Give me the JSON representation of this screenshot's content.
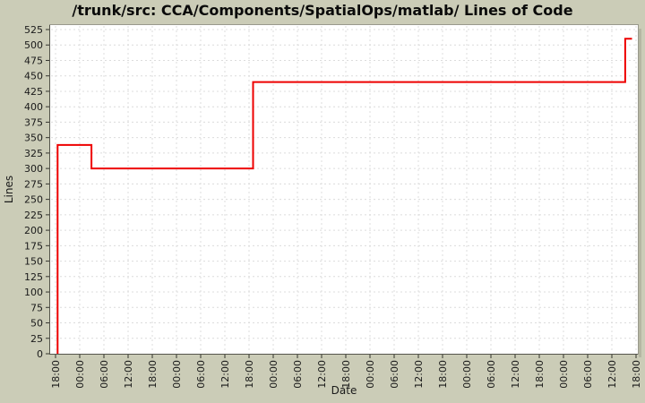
{
  "window": {
    "title": "/trunk/src: CCA/Components/SpatialOps/matlab/ Lines of Code"
  },
  "colors": {
    "background": "#cbccb7",
    "plot_background": "#ffffff",
    "grid": "#dcdcdc",
    "border": "#99998c",
    "axis": "#55554c",
    "tick": "#33332e",
    "line": "#ee0000",
    "text": "#1a1a1a",
    "shadow": "#b5b6a2"
  },
  "chart_data": {
    "type": "line",
    "subtype": "step",
    "title": "/trunk/src: CCA/Components/SpatialOps/matlab/ Lines of Code",
    "xlabel": "Date",
    "ylabel": "Lines",
    "grid": true,
    "legend_position": "none",
    "x_axis": {
      "unit": "hours-since-first-tick",
      "range": [
        0,
        144
      ],
      "tick_interval_hours": 6,
      "tick_labels": [
        "18:00",
        "00:00",
        "06:00",
        "12:00",
        "18:00",
        "00:00",
        "06:00",
        "12:00",
        "18:00",
        "00:00",
        "06:00",
        "12:00",
        "18:00",
        "00:00",
        "06:00",
        "12:00",
        "18:00",
        "00:00",
        "06:00",
        "12:00",
        "18:00",
        "00:00",
        "06:00",
        "12:00",
        "18:00"
      ]
    },
    "y_axis": {
      "range": [
        0,
        525
      ],
      "tick_interval": 25,
      "tick_labels": [
        "0",
        "25",
        "50",
        "75",
        "100",
        "125",
        "150",
        "175",
        "200",
        "225",
        "250",
        "275",
        "300",
        "325",
        "350",
        "375",
        "400",
        "425",
        "450",
        "475",
        "500",
        "525"
      ]
    },
    "series": [
      {
        "name": "Lines of Code",
        "color": "#ee0000",
        "points": [
          {
            "t": 0.5,
            "value": 0
          },
          {
            "t": 0.5,
            "value": 338
          },
          {
            "t": 8.9,
            "value": 338
          },
          {
            "t": 8.9,
            "value": 300
          },
          {
            "t": 49.0,
            "value": 300
          },
          {
            "t": 49.0,
            "value": 440
          },
          {
            "t": 141.3,
            "value": 440
          },
          {
            "t": 141.3,
            "value": 510
          },
          {
            "t": 143.0,
            "value": 510
          }
        ]
      }
    ]
  }
}
